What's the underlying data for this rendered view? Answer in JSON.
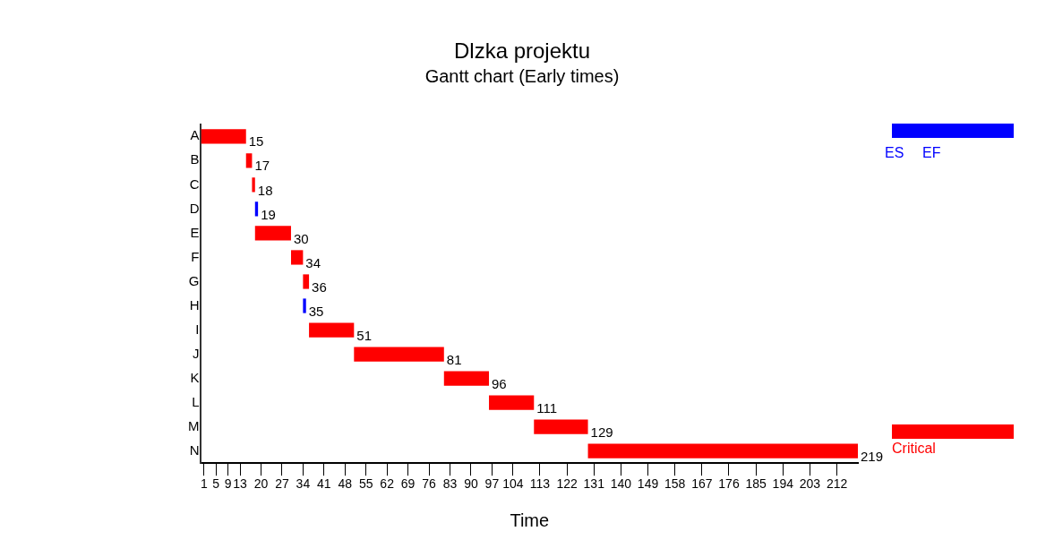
{
  "chart_data": {
    "type": "bar",
    "orientation": "horizontal",
    "title": "Dlzka projektu",
    "subtitle": "Gantt chart (Early times)",
    "xlabel": "Time",
    "categories": [
      "A",
      "B",
      "C",
      "D",
      "E",
      "F",
      "G",
      "H",
      "I",
      "J",
      "K",
      "L",
      "M",
      "N"
    ],
    "series": [
      {
        "name": "Critical",
        "color": "#ff0000",
        "base": [
          0,
          15,
          17,
          null,
          18,
          30,
          34,
          null,
          36,
          51,
          81,
          96,
          111,
          129
        ],
        "values": [
          15,
          2,
          1,
          null,
          12,
          4,
          2,
          null,
          15,
          30,
          15,
          15,
          18,
          90
        ],
        "value_labels": [
          "15",
          "17",
          "18",
          null,
          "30",
          "34",
          "36",
          null,
          "51",
          "81",
          "96",
          "111",
          "129",
          "219"
        ]
      },
      {
        "color": "#0000ff",
        "base": [
          null,
          null,
          null,
          18,
          null,
          null,
          null,
          34,
          null,
          null,
          null,
          null,
          null,
          null
        ],
        "values": [
          null,
          null,
          null,
          1,
          null,
          null,
          null,
          1,
          null,
          null,
          null,
          null,
          null,
          null
        ],
        "value_labels": [
          null,
          null,
          null,
          "19",
          null,
          null,
          null,
          "35",
          null,
          null,
          null,
          null,
          null,
          null
        ]
      }
    ],
    "xlim": [
      0,
      219
    ],
    "xticks": [
      1,
      5,
      9,
      13,
      20,
      27,
      34,
      41,
      48,
      55,
      62,
      69,
      76,
      83,
      90,
      97,
      104,
      113,
      122,
      131,
      140,
      149,
      158,
      167,
      176,
      185,
      194,
      203,
      212
    ],
    "annotations": [
      "ES",
      "EF"
    ],
    "legend": "right",
    "grid": false
  }
}
